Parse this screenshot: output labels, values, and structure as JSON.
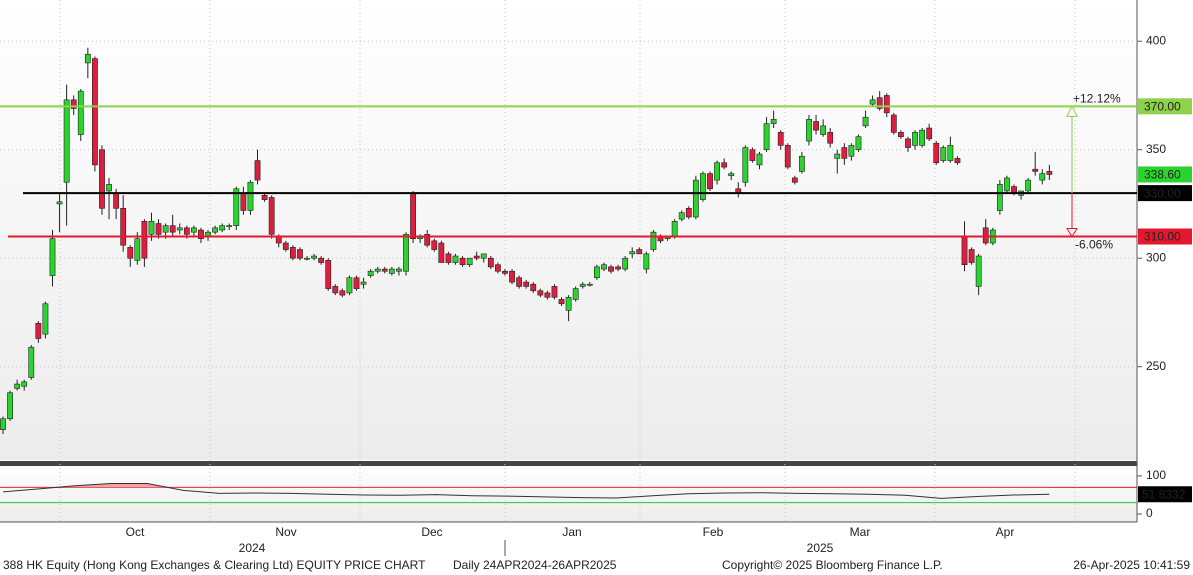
{
  "chart_data": {
    "type": "candlestick",
    "title": "388 HK Equity (Hong Kong Exchanges & Clearing Ltd) EQUITY PRICE CHART",
    "subtitle": "Daily 24APR2024-26APR2025",
    "copyright": "Copyright© 2025 Bloomberg Finance L.P.",
    "timestamp": "26-Apr-2025 10:41:59",
    "up_color": "#29d42e",
    "down_color": "#dc1f3f",
    "open": [
      221,
      226,
      240,
      241,
      245,
      270,
      265,
      292,
      325,
      335,
      373,
      357,
      390,
      392,
      350,
      331,
      330,
      323,
      305,
      299,
      317,
      311,
      316,
      312,
      315,
      313,
      314,
      312,
      313,
      310,
      312,
      313,
      315,
      315,
      330,
      322,
      345,
      329,
      328,
      310,
      307,
      305,
      304,
      300,
      300,
      300,
      299,
      287,
      285,
      284,
      291,
      288,
      292,
      294,
      295,
      293,
      294,
      294,
      330,
      309,
      311,
      308,
      307,
      302,
      298,
      300,
      297,
      301,
      300,
      300,
      297,
      294,
      294,
      291,
      289,
      288,
      285,
      284,
      287,
      281,
      276,
      281,
      287,
      288,
      291,
      295,
      296,
      296,
      295,
      302,
      304,
      295,
      304,
      310,
      309,
      310,
      318,
      323,
      319,
      327,
      339,
      336,
      344,
      338,
      332,
      335,
      350,
      343,
      350,
      362,
      358,
      352,
      337,
      340,
      354,
      363,
      357,
      358,
      346,
      351,
      347,
      350,
      361,
      371,
      374,
      375,
      366,
      358,
      355,
      352,
      352,
      360,
      353,
      345,
      345,
      346,
      310,
      304,
      287,
      314,
      307,
      322,
      331,
      333,
      329,
      331,
      341,
      336,
      340
    ],
    "high": [
      227,
      239,
      244,
      244,
      260,
      271,
      280,
      313,
      330,
      380,
      375,
      378,
      397,
      393,
      352,
      337,
      332,
      329,
      306,
      312,
      318,
      321,
      318,
      316,
      320,
      316,
      315,
      315,
      314,
      313,
      315,
      316,
      316,
      333,
      333,
      336,
      350,
      330,
      329,
      311,
      308,
      306,
      305,
      301,
      302,
      301,
      300,
      288,
      286,
      292,
      292,
      291,
      295,
      296,
      296,
      296,
      296,
      312,
      331,
      311,
      313,
      309,
      308,
      303,
      302,
      301,
      300,
      303,
      302,
      301,
      298,
      295,
      295,
      292,
      290,
      289,
      286,
      285,
      288,
      282,
      283,
      287,
      289,
      289,
      297,
      298,
      297,
      297,
      301,
      305,
      305,
      303,
      313,
      311,
      310,
      318,
      322,
      324,
      338,
      340,
      340,
      345,
      346,
      340,
      335,
      352,
      351,
      349,
      365,
      368,
      359,
      353,
      338,
      349,
      366,
      366,
      364,
      360,
      350,
      353,
      353,
      357,
      368,
      375,
      377,
      376,
      367,
      359,
      356,
      359,
      360,
      362,
      354,
      352,
      356,
      347,
      317,
      305,
      302,
      318,
      314,
      336,
      338,
      334,
      331,
      337,
      349,
      341,
      343
    ],
    "low": [
      219,
      225,
      239,
      239,
      244,
      261,
      263,
      287,
      312,
      315,
      366,
      354,
      383,
      340,
      320,
      318,
      318,
      303,
      296,
      297,
      296,
      308,
      309,
      309,
      310,
      311,
      309,
      310,
      307,
      308,
      311,
      312,
      313,
      313,
      320,
      320,
      334,
      326,
      309,
      305,
      303,
      299,
      299,
      299,
      299,
      297,
      285,
      283,
      282,
      283,
      285,
      286,
      291,
      293,
      293,
      292,
      292,
      292,
      307,
      307,
      305,
      303,
      298,
      297,
      297,
      296,
      296,
      299,
      298,
      295,
      293,
      292,
      288,
      286,
      286,
      284,
      282,
      281,
      281,
      278,
      271,
      280,
      286,
      287,
      290,
      294,
      293,
      294,
      294,
      300,
      302,
      293,
      303,
      307,
      308,
      309,
      317,
      318,
      318,
      326,
      331,
      334,
      341,
      336,
      328,
      333,
      344,
      341,
      349,
      360,
      350,
      341,
      334,
      339,
      352,
      357,
      356,
      351,
      339,
      343,
      345,
      349,
      360,
      370,
      368,
      365,
      357,
      355,
      349,
      350,
      351,
      354,
      343,
      344,
      344,
      343,
      294,
      297,
      283,
      306,
      306,
      320,
      330,
      329,
      327,
      330,
      338,
      334,
      336
    ],
    "close": [
      226,
      238,
      242,
      243,
      259,
      263,
      279,
      309,
      326,
      373,
      369,
      377,
      394,
      343,
      323,
      334,
      323,
      306,
      300,
      309,
      300,
      317,
      311,
      315,
      312,
      314,
      311,
      314,
      309,
      312,
      314,
      315,
      315,
      332,
      322,
      335,
      336,
      327,
      311,
      307,
      304,
      300,
      300,
      300,
      301,
      298,
      286,
      284,
      283,
      291,
      286,
      289,
      294,
      295,
      294,
      295,
      295,
      311,
      309,
      310,
      306,
      304,
      298,
      298,
      301,
      297,
      300,
      300,
      302,
      296,
      294,
      293,
      289,
      287,
      287,
      285,
      283,
      282,
      282,
      279,
      282,
      286,
      288,
      288,
      296,
      297,
      294,
      295,
      300,
      303,
      302,
      302,
      312,
      308,
      310,
      317,
      321,
      319,
      336,
      339,
      332,
      344,
      342,
      339,
      330,
      351,
      345,
      348,
      362,
      364,
      352,
      342,
      335,
      347,
      364,
      359,
      361,
      353,
      348,
      346,
      352,
      356,
      365,
      373,
      369,
      367,
      358,
      356,
      351,
      358,
      359,
      355,
      344,
      351,
      352,
      344,
      297,
      298,
      301,
      307,
      313,
      334,
      337,
      330,
      331,
      336,
      340,
      339,
      338.6
    ],
    "ylim": [
      207,
      419
    ],
    "yticks": [
      250,
      300,
      350,
      400
    ],
    "months": [
      "Oct",
      "Nov",
      "Dec",
      "Jan",
      "Feb",
      "Mar",
      "Apr"
    ],
    "years": [
      "2024",
      "2025"
    ],
    "levels": [
      {
        "value": 370,
        "label": "370.00",
        "color": "#8ed14a"
      },
      {
        "value": 330,
        "label": "330.00",
        "color": "#000000"
      },
      {
        "value": 310,
        "label": "310.00",
        "color": "#e3182f"
      }
    ],
    "last_price": {
      "value": 338.6,
      "label": "338.60"
    },
    "annotations": [
      "+12.12%",
      "-6.06%"
    ],
    "rsi": {
      "values": [
        58,
        66,
        74,
        80,
        80,
        62,
        54,
        55,
        54,
        52,
        50,
        49,
        51,
        48,
        47,
        45,
        43,
        42,
        48,
        53,
        55,
        56,
        54,
        53,
        52,
        49,
        41,
        46,
        50,
        52
      ],
      "ylim": [
        -21,
        126
      ],
      "yticks": [
        0,
        100
      ],
      "levels": [
        70,
        30
      ],
      "last": {
        "value": 51.8332,
        "label": "51.8332"
      }
    }
  }
}
